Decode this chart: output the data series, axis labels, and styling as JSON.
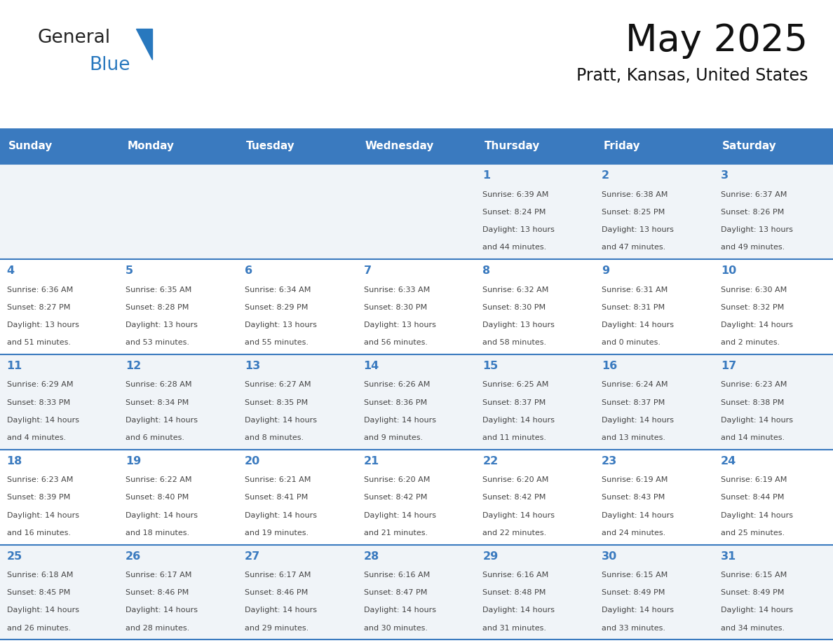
{
  "title": "May 2025",
  "subtitle": "Pratt, Kansas, United States",
  "header_color": "#3a7abf",
  "header_text_color": "#ffffff",
  "cell_bg_row0": "#f0f4f8",
  "cell_bg_row1": "#ffffff",
  "cell_bg_row2": "#f0f4f8",
  "cell_bg_row3": "#ffffff",
  "cell_bg_row4": "#f0f4f8",
  "day_headers": [
    "Sunday",
    "Monday",
    "Tuesday",
    "Wednesday",
    "Thursday",
    "Friday",
    "Saturday"
  ],
  "text_color": "#444444",
  "day_number_color": "#3a7abf",
  "line_color": "#3a7abf",
  "logo_general_color": "#222222",
  "logo_blue_color": "#2878be",
  "logo_triangle_color": "#2878be",
  "days": [
    {
      "day": 1,
      "col": 4,
      "row": 0,
      "sunrise": "6:39 AM",
      "sunset": "8:24 PM",
      "daylight": "13 hours and 44 minutes."
    },
    {
      "day": 2,
      "col": 5,
      "row": 0,
      "sunrise": "6:38 AM",
      "sunset": "8:25 PM",
      "daylight": "13 hours and 47 minutes."
    },
    {
      "day": 3,
      "col": 6,
      "row": 0,
      "sunrise": "6:37 AM",
      "sunset": "8:26 PM",
      "daylight": "13 hours and 49 minutes."
    },
    {
      "day": 4,
      "col": 0,
      "row": 1,
      "sunrise": "6:36 AM",
      "sunset": "8:27 PM",
      "daylight": "13 hours and 51 minutes."
    },
    {
      "day": 5,
      "col": 1,
      "row": 1,
      "sunrise": "6:35 AM",
      "sunset": "8:28 PM",
      "daylight": "13 hours and 53 minutes."
    },
    {
      "day": 6,
      "col": 2,
      "row": 1,
      "sunrise": "6:34 AM",
      "sunset": "8:29 PM",
      "daylight": "13 hours and 55 minutes."
    },
    {
      "day": 7,
      "col": 3,
      "row": 1,
      "sunrise": "6:33 AM",
      "sunset": "8:30 PM",
      "daylight": "13 hours and 56 minutes."
    },
    {
      "day": 8,
      "col": 4,
      "row": 1,
      "sunrise": "6:32 AM",
      "sunset": "8:30 PM",
      "daylight": "13 hours and 58 minutes."
    },
    {
      "day": 9,
      "col": 5,
      "row": 1,
      "sunrise": "6:31 AM",
      "sunset": "8:31 PM",
      "daylight": "14 hours and 0 minutes."
    },
    {
      "day": 10,
      "col": 6,
      "row": 1,
      "sunrise": "6:30 AM",
      "sunset": "8:32 PM",
      "daylight": "14 hours and 2 minutes."
    },
    {
      "day": 11,
      "col": 0,
      "row": 2,
      "sunrise": "6:29 AM",
      "sunset": "8:33 PM",
      "daylight": "14 hours and 4 minutes."
    },
    {
      "day": 12,
      "col": 1,
      "row": 2,
      "sunrise": "6:28 AM",
      "sunset": "8:34 PM",
      "daylight": "14 hours and 6 minutes."
    },
    {
      "day": 13,
      "col": 2,
      "row": 2,
      "sunrise": "6:27 AM",
      "sunset": "8:35 PM",
      "daylight": "14 hours and 8 minutes."
    },
    {
      "day": 14,
      "col": 3,
      "row": 2,
      "sunrise": "6:26 AM",
      "sunset": "8:36 PM",
      "daylight": "14 hours and 9 minutes."
    },
    {
      "day": 15,
      "col": 4,
      "row": 2,
      "sunrise": "6:25 AM",
      "sunset": "8:37 PM",
      "daylight": "14 hours and 11 minutes."
    },
    {
      "day": 16,
      "col": 5,
      "row": 2,
      "sunrise": "6:24 AM",
      "sunset": "8:37 PM",
      "daylight": "14 hours and 13 minutes."
    },
    {
      "day": 17,
      "col": 6,
      "row": 2,
      "sunrise": "6:23 AM",
      "sunset": "8:38 PM",
      "daylight": "14 hours and 14 minutes."
    },
    {
      "day": 18,
      "col": 0,
      "row": 3,
      "sunrise": "6:23 AM",
      "sunset": "8:39 PM",
      "daylight": "14 hours and 16 minutes."
    },
    {
      "day": 19,
      "col": 1,
      "row": 3,
      "sunrise": "6:22 AM",
      "sunset": "8:40 PM",
      "daylight": "14 hours and 18 minutes."
    },
    {
      "day": 20,
      "col": 2,
      "row": 3,
      "sunrise": "6:21 AM",
      "sunset": "8:41 PM",
      "daylight": "14 hours and 19 minutes."
    },
    {
      "day": 21,
      "col": 3,
      "row": 3,
      "sunrise": "6:20 AM",
      "sunset": "8:42 PM",
      "daylight": "14 hours and 21 minutes."
    },
    {
      "day": 22,
      "col": 4,
      "row": 3,
      "sunrise": "6:20 AM",
      "sunset": "8:42 PM",
      "daylight": "14 hours and 22 minutes."
    },
    {
      "day": 23,
      "col": 5,
      "row": 3,
      "sunrise": "6:19 AM",
      "sunset": "8:43 PM",
      "daylight": "14 hours and 24 minutes."
    },
    {
      "day": 24,
      "col": 6,
      "row": 3,
      "sunrise": "6:19 AM",
      "sunset": "8:44 PM",
      "daylight": "14 hours and 25 minutes."
    },
    {
      "day": 25,
      "col": 0,
      "row": 4,
      "sunrise": "6:18 AM",
      "sunset": "8:45 PM",
      "daylight": "14 hours and 26 minutes."
    },
    {
      "day": 26,
      "col": 1,
      "row": 4,
      "sunrise": "6:17 AM",
      "sunset": "8:46 PM",
      "daylight": "14 hours and 28 minutes."
    },
    {
      "day": 27,
      "col": 2,
      "row": 4,
      "sunrise": "6:17 AM",
      "sunset": "8:46 PM",
      "daylight": "14 hours and 29 minutes."
    },
    {
      "day": 28,
      "col": 3,
      "row": 4,
      "sunrise": "6:16 AM",
      "sunset": "8:47 PM",
      "daylight": "14 hours and 30 minutes."
    },
    {
      "day": 29,
      "col": 4,
      "row": 4,
      "sunrise": "6:16 AM",
      "sunset": "8:48 PM",
      "daylight": "14 hours and 31 minutes."
    },
    {
      "day": 30,
      "col": 5,
      "row": 4,
      "sunrise": "6:15 AM",
      "sunset": "8:49 PM",
      "daylight": "14 hours and 33 minutes."
    },
    {
      "day": 31,
      "col": 6,
      "row": 4,
      "sunrise": "6:15 AM",
      "sunset": "8:49 PM",
      "daylight": "14 hours and 34 minutes."
    }
  ]
}
